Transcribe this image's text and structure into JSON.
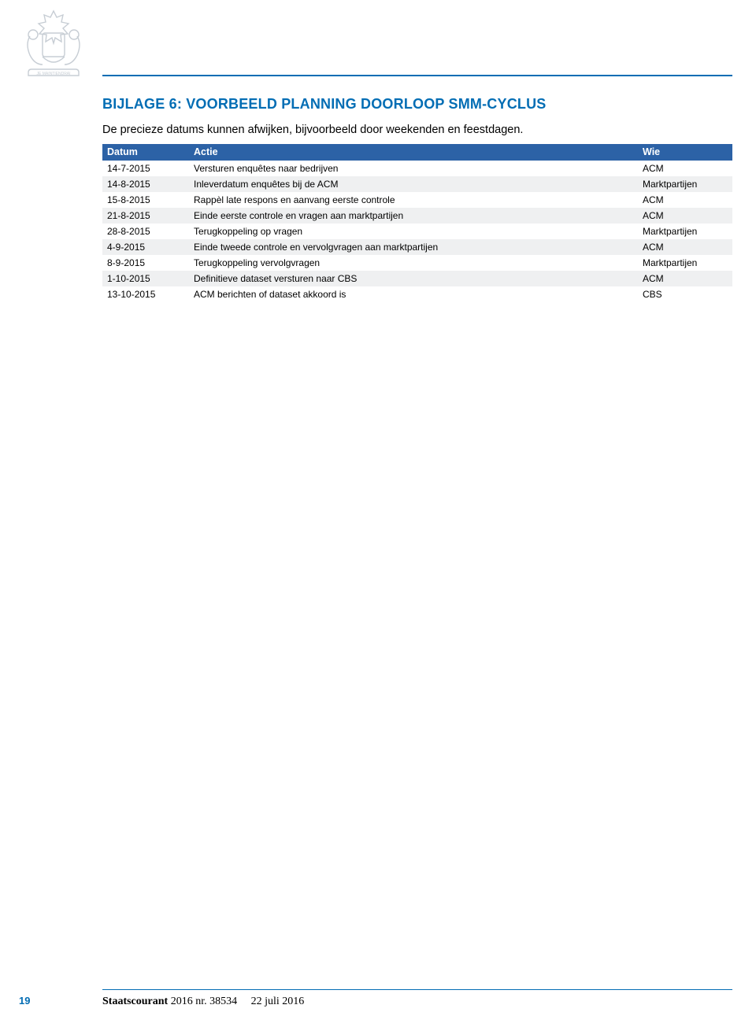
{
  "colors": {
    "accent": "#036db4",
    "rule": "#036db4",
    "header_bg": "#2c62a6",
    "header_text": "#ffffff",
    "row_odd_bg": "#ffffff",
    "row_even_bg": "#eff0f1",
    "text": "#000000",
    "crest": "#9aa6b2",
    "footer_rule": "#036db4",
    "page_num": "#036db4"
  },
  "typography": {
    "title_fontsize": 18,
    "title_weight": 900,
    "intro_fontsize": 14.5,
    "table_fontsize": 12,
    "footer_fontsize": 14
  },
  "title": "BIJLAGE 6: VOORBEELD PLANNING DOORLOOP SMM-CYCLUS",
  "intro": "De precieze datums kunnen afwijken, bijvoorbeeld door weekenden en feestdagen.",
  "table": {
    "columns": [
      {
        "key": "datum",
        "label": "Datum",
        "width": 110
      },
      {
        "key": "actie",
        "label": "Actie"
      },
      {
        "key": "wie",
        "label": "Wie",
        "width": 120
      }
    ],
    "rows": [
      [
        "14-7-2015",
        "Versturen enquêtes naar bedrijven",
        "ACM"
      ],
      [
        "14-8-2015",
        "Inleverdatum enquêtes bij de ACM",
        "Marktpartijen"
      ],
      [
        "15-8-2015",
        "Rappèl late respons en aanvang eerste controle",
        "ACM"
      ],
      [
        "21-8-2015",
        "Einde eerste controle en vragen aan marktpartijen",
        "ACM"
      ],
      [
        "28-8-2015",
        "Terugkoppeling op vragen",
        "Marktpartijen"
      ],
      [
        "4-9-2015",
        "Einde tweede controle en vervolgvragen aan marktpartijen",
        "ACM"
      ],
      [
        "8-9-2015",
        "Terugkoppeling vervolgvragen",
        "Marktpartijen"
      ],
      [
        "1-10-2015",
        "Definitieve dataset versturen naar CBS",
        "ACM"
      ],
      [
        "13-10-2015",
        "ACM berichten of dataset akkoord is",
        "CBS"
      ]
    ]
  },
  "footer": {
    "page_number": "19",
    "publication_name": "Staatscourant",
    "issue": "2016 nr. 38534",
    "date": "22 juli 2016"
  }
}
